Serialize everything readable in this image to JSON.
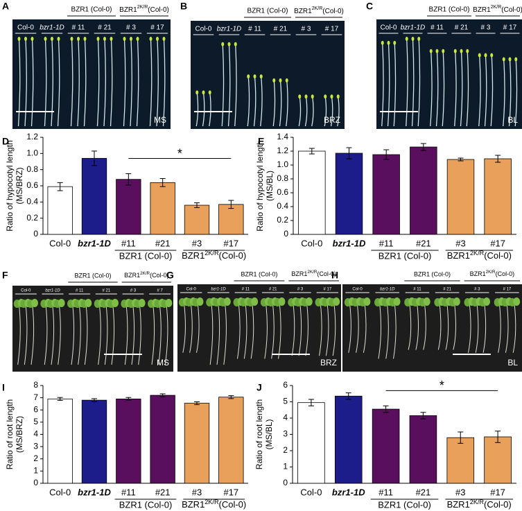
{
  "photos": [
    {
      "panel": "A",
      "labels": [
        "Col-0",
        "bzr1-1D",
        "# 11",
        "# 21",
        "# 3",
        "# 17"
      ],
      "groups": [
        "BZR1 (Col-0)",
        {
          "text": "BZR1",
          "sup": "2K/R",
          "after": "(Col-0)"
        }
      ],
      "condition": "MS"
    },
    {
      "panel": "B",
      "labels": [
        "Col-0",
        "bzr1-1D",
        "# 11",
        "# 21",
        "# 3",
        "# 17"
      ],
      "groups": [
        "BZR1 (Col-0)",
        {
          "text": "BZR1",
          "sup": "2K/R",
          "after": "(Col-0)"
        }
      ],
      "condition": "BRZ"
    },
    {
      "panel": "C",
      "labels": [
        "Col-0",
        "bzr1-1D",
        "# 11",
        "# 21",
        "# 3",
        "# 17"
      ],
      "groups": [
        "BZR1 (Col-0)",
        {
          "text": "BZR1",
          "sup": "2K/R",
          "after": "(Col-0)"
        }
      ],
      "condition": "BL"
    },
    {
      "panel": "F",
      "labels": [
        "Col-0",
        "bzr1-1D",
        "# 11",
        "# 21",
        "# 3",
        "# 7"
      ],
      "groups": [
        "BZR1 (Col-0)",
        {
          "text": "BZR1",
          "sup": "2K/R",
          "after": "(Col-0)"
        }
      ],
      "condition": "MS"
    },
    {
      "panel": "G",
      "labels": [
        "Col-0",
        "bzr1-1D",
        "# 11",
        "# 21",
        "# 3",
        "# 17"
      ],
      "groups": [
        "BZR1 (Col-0)",
        {
          "text": "BZR1",
          "sup": "2K/R",
          "after": "(Col-0)"
        }
      ],
      "condition": "BRZ"
    },
    {
      "panel": "H",
      "labels": [
        "Col-0",
        "bzr1-1D",
        "# 11",
        "# 21",
        "# 3",
        "# 17"
      ],
      "groups": [
        "BZR1 (Col-0)",
        {
          "text": "BZR1",
          "sup": "2K/R",
          "after": "(Col-0)"
        }
      ],
      "condition": "BL"
    }
  ],
  "chart_data": [
    {
      "panel": "D",
      "type": "bar",
      "y_label": [
        "Ratio of hypocotyl length",
        "(MS/BRZ)"
      ],
      "categories": [
        "Col-0",
        "bzr1-1D",
        "#11",
        "#21",
        "#3",
        "#17"
      ],
      "values": [
        0.59,
        0.94,
        0.68,
        0.64,
        0.36,
        0.37
      ],
      "errors": [
        0.05,
        0.09,
        0.07,
        0.05,
        0.03,
        0.05
      ],
      "colors": [
        "#ffffff",
        "#1c1c8a",
        "#5a0e5e",
        "#e8a05a",
        "#e8a05a",
        "#e8a05a"
      ],
      "ylim": [
        0,
        1.2
      ],
      "yticks": [
        0,
        0.2,
        0.4,
        0.6,
        0.8,
        {
          "value": 1,
          "label": "1.0"
        },
        1.2
      ],
      "group_labels": [
        "BZR1 (Col-0)",
        {
          "text": "BZR1",
          "sup": "2K/R",
          "after": "(Col-0)"
        }
      ],
      "significance": "*"
    },
    {
      "panel": "E",
      "type": "bar",
      "y_label": [
        "Ratio of hypocotyl length",
        "(MS/BL)"
      ],
      "categories": [
        "Col-0",
        "bzr1-1D",
        "#11",
        "#21",
        "#3",
        "#17"
      ],
      "values": [
        1.2,
        1.17,
        1.15,
        1.26,
        1.08,
        1.09
      ],
      "errors": [
        0.04,
        0.08,
        0.07,
        0.05,
        0.02,
        0.05
      ],
      "colors": [
        "#ffffff",
        "#1c1c8a",
        "#5a0e5e",
        "#5a0e5e",
        "#e8a05a",
        "#e8a05a"
      ],
      "ylim": [
        0,
        1.4
      ],
      "yticks": [
        0,
        0.2,
        0.4,
        0.6,
        0.8,
        {
          "value": 1,
          "label": "1.0"
        },
        1.2,
        1.4
      ],
      "group_labels": [
        "BZR1 (Col-0)",
        {
          "text": "BZR1",
          "sup": "2K/R",
          "after": "(Col-0)"
        }
      ]
    },
    {
      "panel": "I",
      "type": "bar",
      "y_label": [
        "Ratio of root length",
        "(MS/BRZ)"
      ],
      "categories": [
        "Col-0",
        "bzr1-1D",
        "#11",
        "#21",
        "#3",
        "#17"
      ],
      "values": [
        6.9,
        6.8,
        6.9,
        7.2,
        6.55,
        7.05
      ],
      "errors": [
        0.12,
        0.12,
        0.12,
        0.12,
        0.12,
        0.12
      ],
      "colors": [
        "#ffffff",
        "#1c1c8a",
        "#5a0e5e",
        "#5a0e5e",
        "#e8a05a",
        "#e8a05a"
      ],
      "ylim": [
        0,
        8
      ],
      "yticks": [
        0,
        1,
        2,
        3,
        4,
        5,
        6,
        7,
        8
      ],
      "group_labels": [
        "BZR1 (Col-0)",
        {
          "text": "BZR1",
          "sup": "2K/R",
          "after": "(Col-0)"
        }
      ]
    },
    {
      "panel": "J",
      "type": "bar",
      "y_label": [
        "Ratio of root length",
        "(MS/BL)"
      ],
      "categories": [
        "Col-0",
        "bzr1-1D",
        "#11",
        "#21",
        "#3",
        "#17"
      ],
      "values": [
        4.95,
        5.35,
        4.55,
        4.15,
        2.8,
        2.85
      ],
      "errors": [
        0.2,
        0.2,
        0.2,
        0.2,
        0.35,
        0.35
      ],
      "colors": [
        "#ffffff",
        "#1c1c8a",
        "#5a0e5e",
        "#5a0e5e",
        "#e8a05a",
        "#e8a05a"
      ],
      "ylim": [
        0,
        6
      ],
      "yticks": [
        0,
        1,
        2,
        3,
        4,
        5,
        6
      ],
      "group_labels": [
        "BZR1 (Col-0)",
        {
          "text": "BZR1",
          "sup": "2K/R",
          "after": "(Col-0)"
        }
      ],
      "significance": "*"
    }
  ]
}
